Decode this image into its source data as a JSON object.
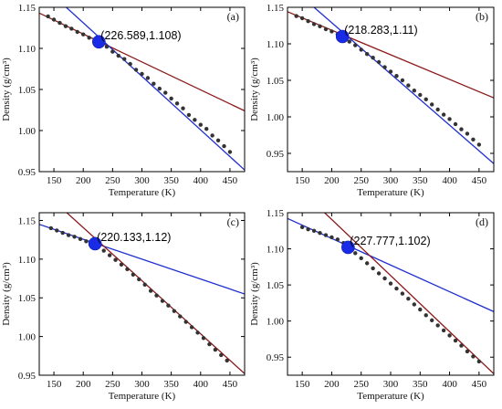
{
  "chart_data": [
    {
      "type": "scatter",
      "panel_label": "(a)",
      "xlabel": "Temperature (K)",
      "ylabel": "Density (g/cm³)",
      "xlim": [
        125,
        475
      ],
      "ylim": [
        0.95,
        1.15
      ],
      "xticks": [
        "150",
        "200",
        "250",
        "300",
        "350",
        "400",
        "450"
      ],
      "yticks": [
        "0.95",
        "1.00",
        "1.05",
        "1.10",
        "1.15"
      ],
      "intersection": {
        "x": 226.589,
        "y": 1.108,
        "label": "(226.589,1.108)"
      },
      "points": [
        [
          140,
          1.139
        ],
        [
          150,
          1.135
        ],
        [
          160,
          1.131
        ],
        [
          170,
          1.127
        ],
        [
          180,
          1.124
        ],
        [
          190,
          1.12
        ],
        [
          200,
          1.117
        ],
        [
          210,
          1.113
        ],
        [
          220,
          1.11
        ],
        [
          230,
          1.105
        ],
        [
          240,
          1.102
        ],
        [
          250,
          1.096
        ],
        [
          260,
          1.091
        ],
        [
          270,
          1.087
        ],
        [
          280,
          1.081
        ],
        [
          290,
          1.074
        ],
        [
          300,
          1.069
        ],
        [
          310,
          1.064
        ],
        [
          320,
          1.057
        ],
        [
          330,
          1.051
        ],
        [
          340,
          1.046
        ],
        [
          350,
          1.039
        ],
        [
          360,
          1.033
        ],
        [
          370,
          1.027
        ],
        [
          380,
          1.019
        ],
        [
          390,
          1.013
        ],
        [
          400,
          1.007
        ],
        [
          410,
          1.002
        ],
        [
          420,
          0.994
        ],
        [
          430,
          0.988
        ],
        [
          440,
          0.981
        ],
        [
          450,
          0.974
        ]
      ],
      "fit_lines": [
        {
          "color": "#8b1a1a",
          "from": [
            125,
            1.143
          ],
          "to": [
            475,
            1.024
          ]
        },
        {
          "color": "#1f2fcf",
          "from": [
            171,
            1.15
          ],
          "to": [
            475,
            0.952
          ]
        }
      ]
    },
    {
      "type": "scatter",
      "panel_label": "(b)",
      "xlabel": "Temperature (K)",
      "ylabel": "Density (g/cm³)",
      "xlim": [
        125,
        475
      ],
      "ylim": [
        0.925,
        1.15
      ],
      "xticks": [
        "150",
        "200",
        "250",
        "300",
        "350",
        "400",
        "450"
      ],
      "yticks": [
        "0.95",
        "1.00",
        "1.05",
        "1.10",
        "1.15"
      ],
      "intersection": {
        "x": 218.283,
        "y": 1.11,
        "label": "(218.283,1.11)"
      },
      "points": [
        [
          140,
          1.138
        ],
        [
          150,
          1.135
        ],
        [
          160,
          1.131
        ],
        [
          170,
          1.127
        ],
        [
          180,
          1.124
        ],
        [
          190,
          1.12
        ],
        [
          200,
          1.117
        ],
        [
          210,
          1.113
        ],
        [
          220,
          1.109
        ],
        [
          230,
          1.103
        ],
        [
          240,
          1.098
        ],
        [
          250,
          1.092
        ],
        [
          260,
          1.086
        ],
        [
          270,
          1.081
        ],
        [
          280,
          1.075
        ],
        [
          290,
          1.068
        ],
        [
          300,
          1.062
        ],
        [
          310,
          1.056
        ],
        [
          320,
          1.05
        ],
        [
          330,
          1.043
        ],
        [
          340,
          1.036
        ],
        [
          350,
          1.03
        ],
        [
          360,
          1.024
        ],
        [
          370,
          1.017
        ],
        [
          380,
          1.01
        ],
        [
          390,
          1.003
        ],
        [
          400,
          0.997
        ],
        [
          410,
          0.99
        ],
        [
          420,
          0.983
        ],
        [
          430,
          0.977
        ],
        [
          440,
          0.969
        ],
        [
          450,
          0.962
        ]
      ],
      "fit_lines": [
        {
          "color": "#8b1a1a",
          "from": [
            125,
            1.144
          ],
          "to": [
            475,
            1.026
          ]
        },
        {
          "color": "#1f2fcf",
          "from": [
            170,
            1.15
          ],
          "to": [
            475,
            0.936
          ]
        }
      ]
    },
    {
      "type": "scatter",
      "panel_label": "(c)",
      "xlabel": "Temperature (K)",
      "ylabel": "Density (g/cm³)",
      "xlim": [
        125,
        475
      ],
      "ylim": [
        0.95,
        1.16
      ],
      "xticks": [
        "150",
        "200",
        "250",
        "300",
        "350",
        "400",
        "450"
      ],
      "yticks": [
        "0.95",
        "1.00",
        "1.05",
        "1.10",
        "1.15"
      ],
      "intersection": {
        "x": 220.133,
        "y": 1.12,
        "label": "(220.133,1.12)"
      },
      "points": [
        [
          145,
          1.14
        ],
        [
          155,
          1.137
        ],
        [
          165,
          1.134
        ],
        [
          175,
          1.131
        ],
        [
          185,
          1.129
        ],
        [
          195,
          1.126
        ],
        [
          205,
          1.123
        ],
        [
          215,
          1.12
        ],
        [
          225,
          1.116
        ],
        [
          235,
          1.111
        ],
        [
          245,
          1.105
        ],
        [
          255,
          1.099
        ],
        [
          265,
          1.093
        ],
        [
          275,
          1.087
        ],
        [
          285,
          1.08
        ],
        [
          295,
          1.074
        ],
        [
          305,
          1.067
        ],
        [
          315,
          1.059
        ],
        [
          325,
          1.053
        ],
        [
          335,
          1.046
        ],
        [
          345,
          1.04
        ],
        [
          355,
          1.033
        ],
        [
          365,
          1.026
        ],
        [
          375,
          1.019
        ],
        [
          385,
          1.012
        ],
        [
          395,
          1.005
        ],
        [
          405,
          0.998
        ],
        [
          415,
          0.99
        ],
        [
          425,
          0.983
        ],
        [
          435,
          0.976
        ],
        [
          445,
          0.969
        ]
      ],
      "fit_lines": [
        {
          "color": "#1f2fcf",
          "from": [
            125,
            1.145
          ],
          "to": [
            475,
            1.055
          ]
        },
        {
          "color": "#8b1a1a",
          "from": [
            172,
            1.16
          ],
          "to": [
            475,
            0.952
          ]
        }
      ]
    },
    {
      "type": "scatter",
      "panel_label": "(d)",
      "xlabel": "Temperature (K)",
      "ylabel": "Density (g/cm³)",
      "xlim": [
        125,
        475
      ],
      "ylim": [
        0.925,
        1.15
      ],
      "xticks": [
        "150",
        "200",
        "250",
        "300",
        "350",
        "400",
        "450"
      ],
      "yticks": [
        "0.95",
        "1.00",
        "1.05",
        "1.10",
        "1.15"
      ],
      "intersection": {
        "x": 227.777,
        "y": 1.102,
        "label": "(227.777,1.102)"
      },
      "points": [
        [
          150,
          1.13
        ],
        [
          160,
          1.127
        ],
        [
          170,
          1.125
        ],
        [
          180,
          1.122
        ],
        [
          190,
          1.119
        ],
        [
          200,
          1.116
        ],
        [
          210,
          1.113
        ],
        [
          220,
          1.108
        ],
        [
          230,
          1.1
        ],
        [
          240,
          1.094
        ],
        [
          250,
          1.087
        ],
        [
          260,
          1.08
        ],
        [
          270,
          1.073
        ],
        [
          280,
          1.066
        ],
        [
          290,
          1.059
        ],
        [
          300,
          1.052
        ],
        [
          310,
          1.045
        ],
        [
          320,
          1.038
        ],
        [
          330,
          1.031
        ],
        [
          340,
          1.023
        ],
        [
          350,
          1.016
        ],
        [
          360,
          1.008
        ],
        [
          370,
          1.001
        ],
        [
          380,
          0.994
        ],
        [
          390,
          0.987
        ],
        [
          400,
          0.98
        ],
        [
          410,
          0.973
        ],
        [
          420,
          0.966
        ],
        [
          430,
          0.958
        ],
        [
          440,
          0.951
        ],
        [
          450,
          0.944
        ]
      ],
      "fit_lines": [
        {
          "color": "#1f2fcf",
          "from": [
            125,
            1.142
          ],
          "to": [
            475,
            1.013
          ]
        },
        {
          "color": "#8b1a1a",
          "from": [
            188,
            1.15
          ],
          "to": [
            475,
            0.927
          ]
        }
      ]
    }
  ]
}
